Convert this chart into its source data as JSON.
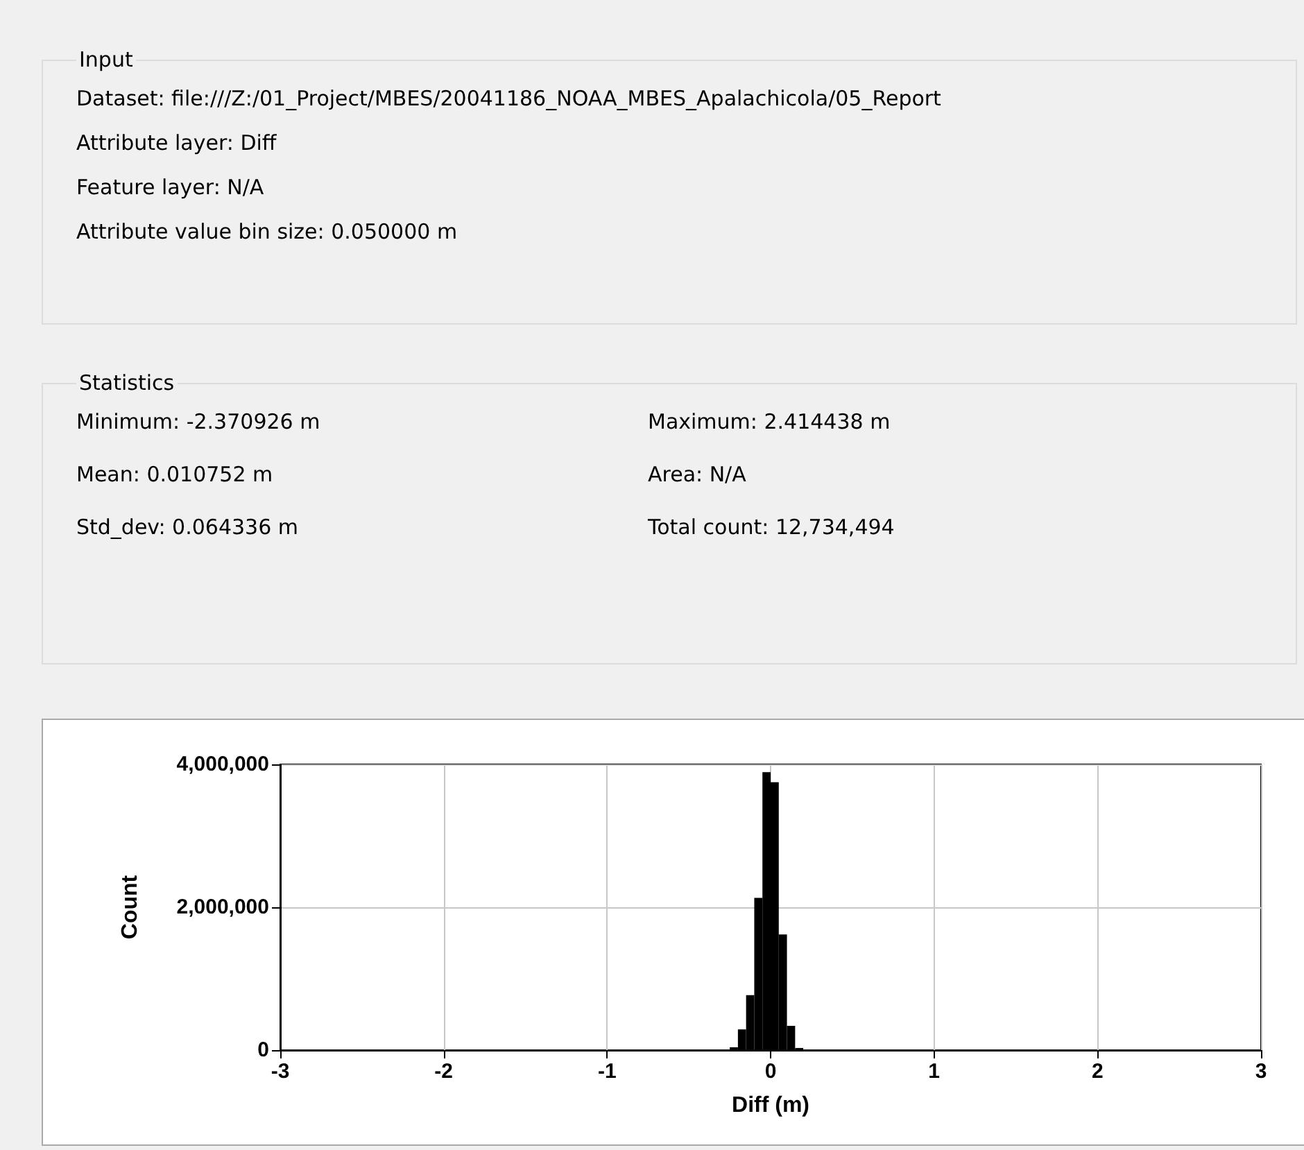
{
  "chart_data": [
    {
      "type": "other",
      "title": "Input",
      "annotations": [
        "Dataset:  file:///Z:/01_Project/MBES/20041186_NOAA_MBES_Apalachicola/05_Report",
        "Attribute layer:  Diff",
        "Feature layer:  N/A",
        "Attribute value bin size:  0.050000 m"
      ]
    },
    {
      "type": "other",
      "title": "Statistics",
      "annotations": [
        "Minimum:  -2.370926 m",
        "Maximum:  2.414438 m",
        "Mean:  0.010752 m",
        "Area:  N/A",
        "Std_dev:  0.064336 m",
        "Total count:  12,734,494"
      ]
    },
    {
      "type": "histogram",
      "xlabel": "Diff (m)",
      "ylabel": "Count",
      "color": "#000000",
      "bins": [
        -0.25,
        -0.2,
        -0.15,
        -0.1,
        -0.05,
        0,
        0.05,
        0.1,
        0.15,
        0.2,
        0.25
      ],
      "values": [
        40000,
        290000,
        770000,
        2130000,
        3890000,
        3750000,
        1620000,
        340000,
        30000,
        10000
      ],
      "xlim": [
        -3,
        3
      ],
      "xticks": [
        -3,
        -2,
        -1,
        0,
        1,
        2,
        3
      ],
      "ylim": [
        0,
        4000000
      ],
      "yticks": [
        0,
        {
          "value": 2000000,
          "label": "2,000,000"
        },
        {
          "value": 4000000,
          "label": "4,000,000"
        }
      ],
      "grid": true
    }
  ]
}
